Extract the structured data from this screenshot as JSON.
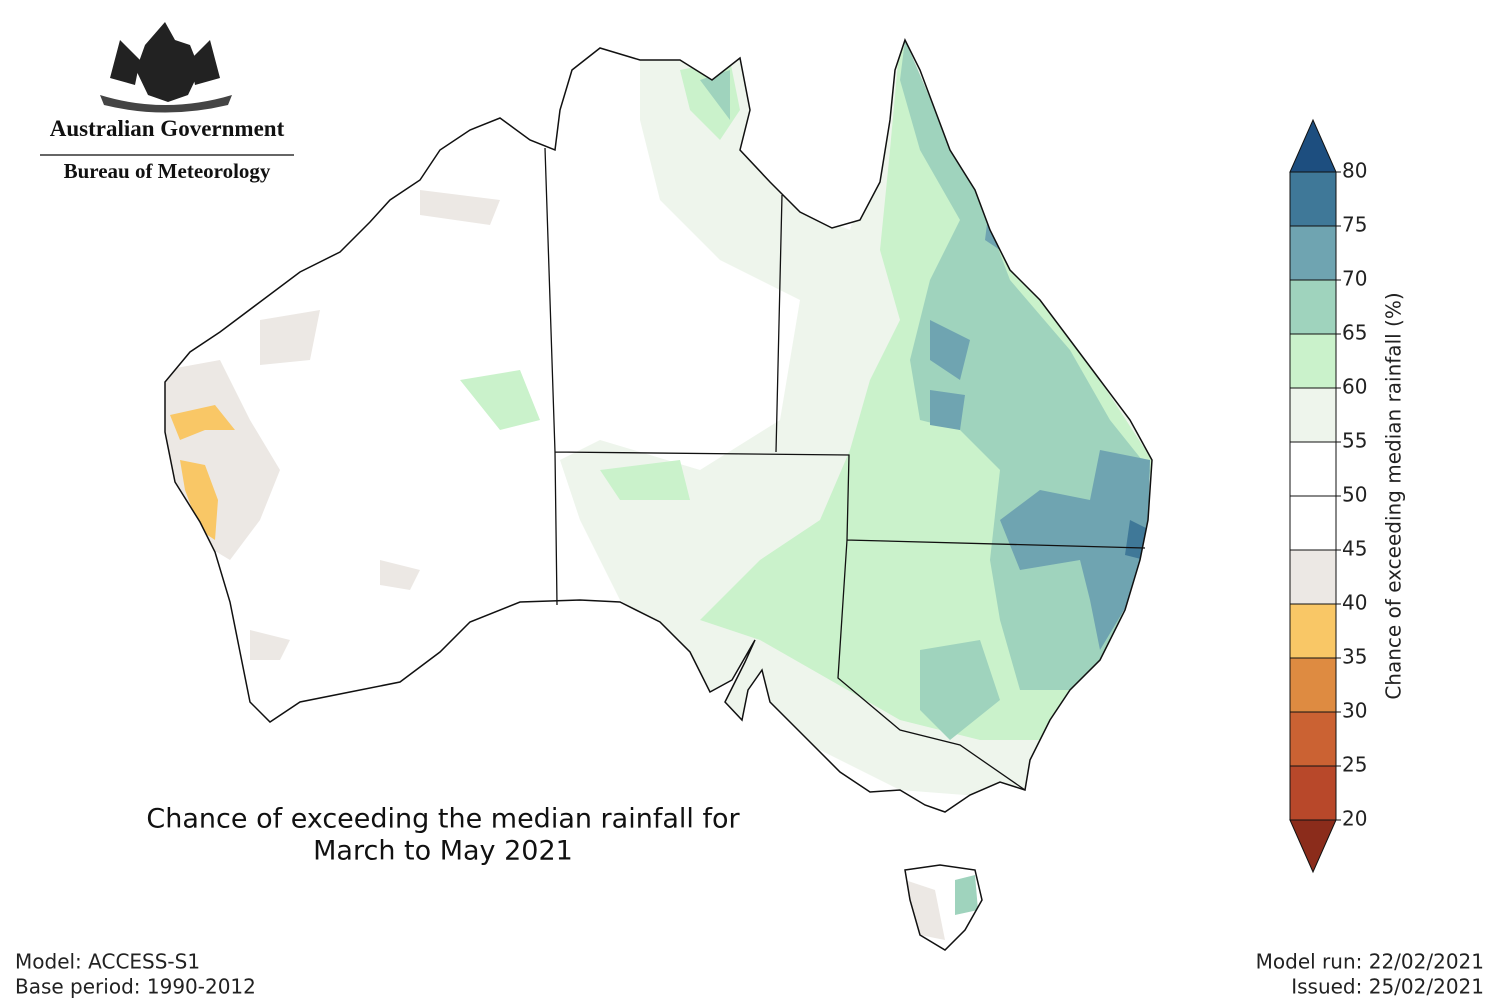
{
  "header": {
    "agency": "Australian Government",
    "bureau": "Bureau of Meteorology"
  },
  "title": [
    "Chance of exceeding the median rainfall for",
    "March to May 2021"
  ],
  "footer": {
    "model": "Model: ACCESS-S1",
    "base_period": "Base period: 1990-2012",
    "model_run": "Model run: 22/02/2021",
    "issued": "Issued: 25/02/2021"
  },
  "colorbar": {
    "label": "Chance of exceeding median rainfall (%)",
    "ticks": [
      20,
      25,
      30,
      35,
      40,
      45,
      50,
      55,
      60,
      65,
      70,
      75,
      80
    ],
    "colors": [
      "#b8482a",
      "#cb6233",
      "#de8b41",
      "#f9c766",
      "#ece8e4",
      "#ffffff",
      "#ffffff",
      "#eef5ec",
      "#caf2cb",
      "#9fd3bd",
      "#6fa4b1",
      "#3f7898"
    ],
    "extend_colors": {
      "min": "#8b2c1b",
      "max": "#1d4e7f"
    }
  }
}
